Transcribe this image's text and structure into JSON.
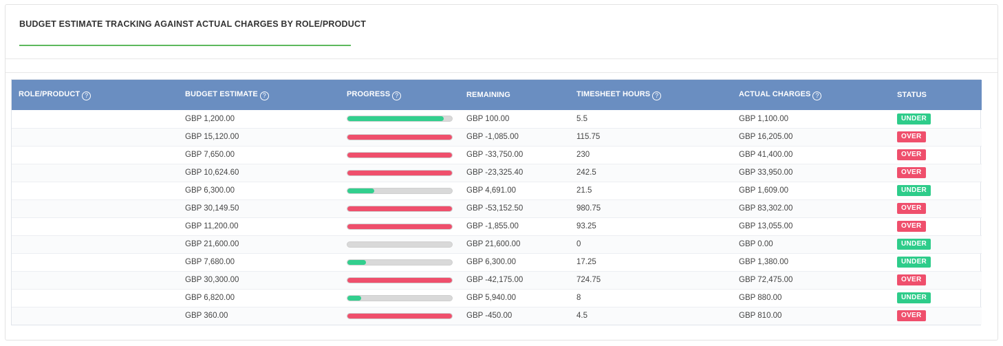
{
  "card": {
    "title": "BUDGET ESTIMATE TRACKING AGAINST ACTUAL CHARGES BY ROLE/PRODUCT"
  },
  "table": {
    "help_glyph": "?",
    "headers": {
      "role": "ROLE/PRODUCT",
      "budget": "BUDGET ESTIMATE",
      "progress": "PROGRESS",
      "remaining": "REMAINING",
      "hours": "TIMESHEET HOURS",
      "actual": "ACTUAL CHARGES",
      "status": "STATUS"
    },
    "rows": [
      {
        "role": "",
        "budget": "GBP 1,200.00",
        "progress": 0.92,
        "remaining": "GBP 100.00",
        "hours": "5.5",
        "actual": "GBP 1,100.00",
        "status": "UNDER"
      },
      {
        "role": "",
        "budget": "GBP 15,120.00",
        "progress": 1.0,
        "remaining": "GBP -1,085.00",
        "hours": "115.75",
        "actual": "GBP 16,205.00",
        "status": "OVER"
      },
      {
        "role": "",
        "budget": "GBP 7,650.00",
        "progress": 1.0,
        "remaining": "GBP -33,750.00",
        "hours": "230",
        "actual": "GBP 41,400.00",
        "status": "OVER"
      },
      {
        "role": "",
        "budget": "GBP 10,624.60",
        "progress": 1.0,
        "remaining": "GBP -23,325.40",
        "hours": "242.5",
        "actual": "GBP 33,950.00",
        "status": "OVER"
      },
      {
        "role": "",
        "budget": "GBP 6,300.00",
        "progress": 0.255,
        "remaining": "GBP 4,691.00",
        "hours": "21.5",
        "actual": "GBP 1,609.00",
        "status": "UNDER"
      },
      {
        "role": "",
        "budget": "GBP 30,149.50",
        "progress": 1.0,
        "remaining": "GBP -53,152.50",
        "hours": "980.75",
        "actual": "GBP 83,302.00",
        "status": "OVER"
      },
      {
        "role": "",
        "budget": "GBP 11,200.00",
        "progress": 1.0,
        "remaining": "GBP -1,855.00",
        "hours": "93.25",
        "actual": "GBP 13,055.00",
        "status": "OVER"
      },
      {
        "role": "",
        "budget": "GBP 21,600.00",
        "progress": 0.0,
        "remaining": "GBP 21,600.00",
        "hours": "0",
        "actual": "GBP 0.00",
        "status": "UNDER"
      },
      {
        "role": "",
        "budget": "GBP 7,680.00",
        "progress": 0.18,
        "remaining": "GBP 6,300.00",
        "hours": "17.25",
        "actual": "GBP 1,380.00",
        "status": "UNDER"
      },
      {
        "role": "",
        "budget": "GBP 30,300.00",
        "progress": 1.0,
        "remaining": "GBP -42,175.00",
        "hours": "724.75",
        "actual": "GBP 72,475.00",
        "status": "OVER"
      },
      {
        "role": "",
        "budget": "GBP 6,820.00",
        "progress": 0.13,
        "remaining": "GBP 5,940.00",
        "hours": "8",
        "actual": "GBP 880.00",
        "status": "UNDER"
      },
      {
        "role": "",
        "budget": "GBP 360.00",
        "progress": 1.0,
        "remaining": "GBP -450.00",
        "hours": "4.5",
        "actual": "GBP 810.00",
        "status": "OVER"
      }
    ]
  },
  "colors": {
    "header_bg": "#6a8ec1",
    "under": "#2ecc8a",
    "over": "#ef4f6c",
    "title_underline": "#5cb85c"
  }
}
